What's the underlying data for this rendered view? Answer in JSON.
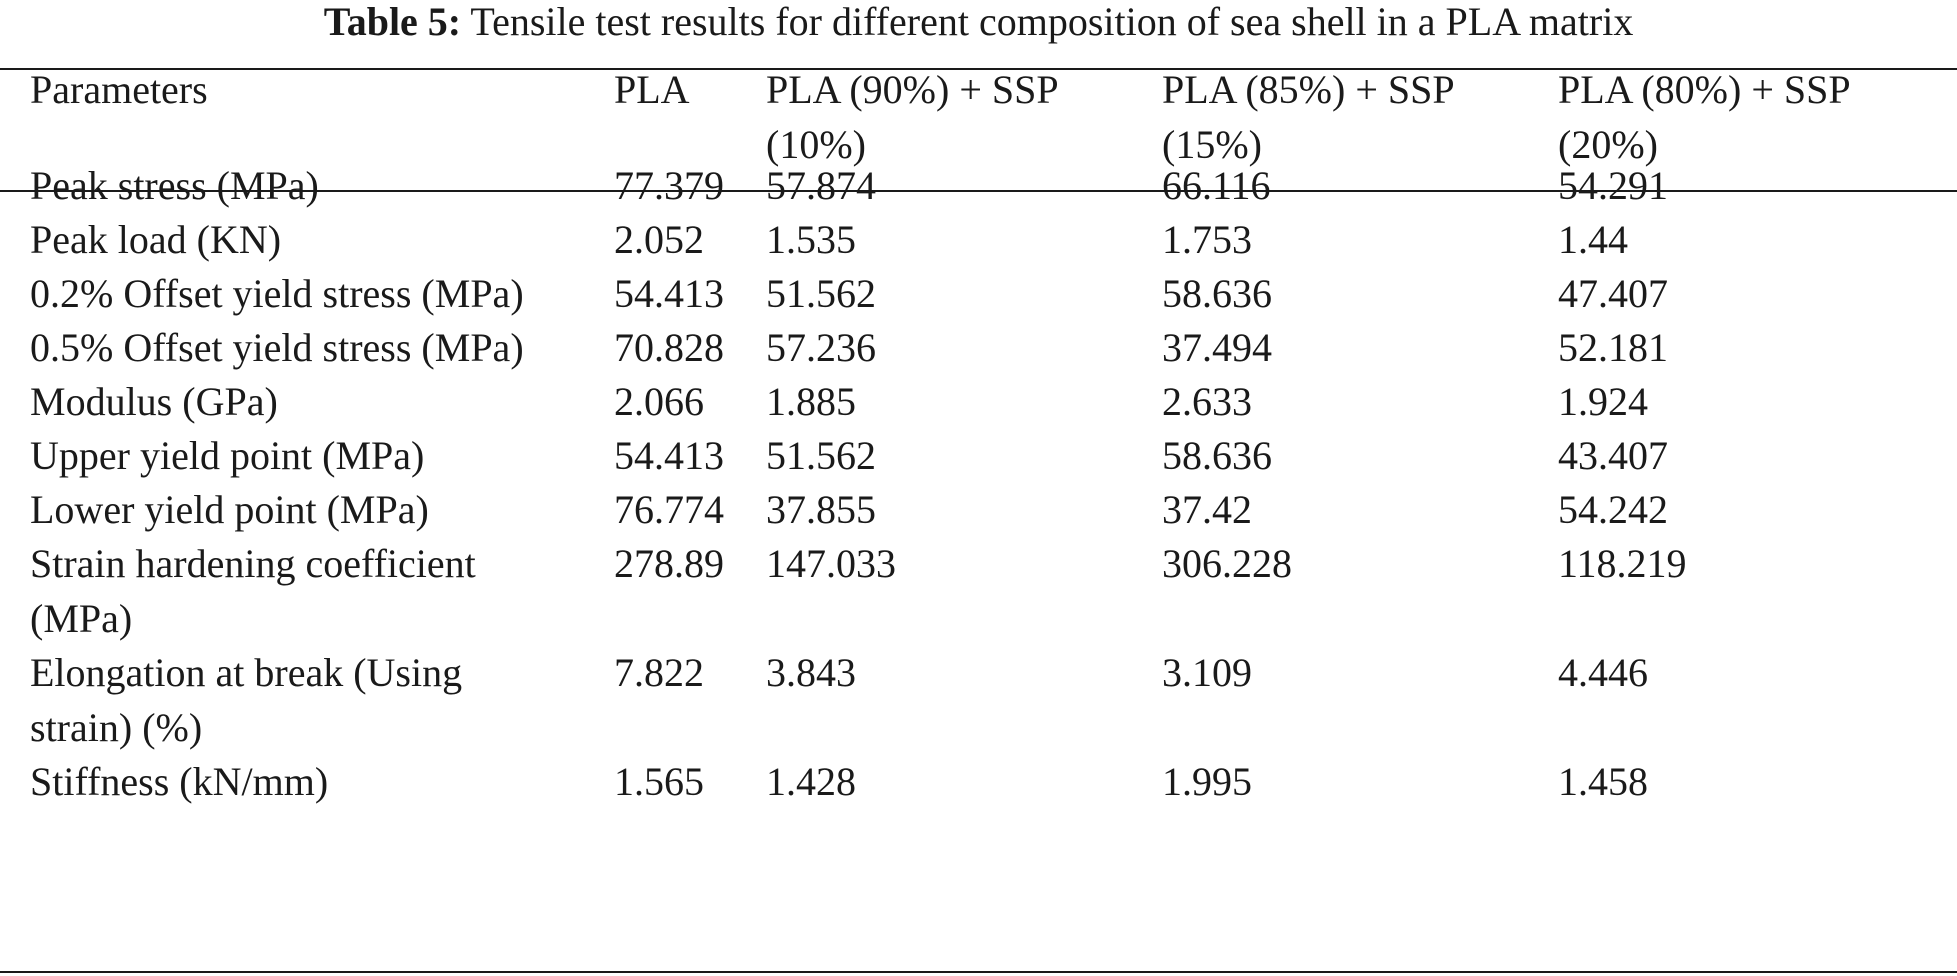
{
  "caption": {
    "label": "Table 5:",
    "text": "Tensile test results for different composition of sea shell in a PLA matrix"
  },
  "table": {
    "headers": [
      [
        "Parameters"
      ],
      [
        "PLA"
      ],
      [
        "PLA (90%) + SSP",
        "(10%)"
      ],
      [
        "PLA (85%) + SSP",
        "(15%)"
      ],
      [
        "PLA (80%) + SSP",
        "(20%)"
      ]
    ],
    "rows": [
      {
        "parameter": [
          "Peak stress (MPa)"
        ],
        "values": [
          "77.379",
          "57.874",
          "66.116",
          "54.291"
        ]
      },
      {
        "parameter": [
          "Peak load (KN)"
        ],
        "values": [
          "2.052",
          "1.535",
          "1.753",
          "1.44"
        ]
      },
      {
        "parameter": [
          "0.2% Offset yield stress (MPa)"
        ],
        "values": [
          "54.413",
          "51.562",
          "58.636",
          "47.407"
        ]
      },
      {
        "parameter": [
          "0.5% Offset yield stress (MPa)"
        ],
        "values": [
          "70.828",
          "57.236",
          "37.494",
          "52.181"
        ]
      },
      {
        "parameter": [
          "Modulus (GPa)"
        ],
        "values": [
          "2.066",
          "1.885",
          "2.633",
          "1.924"
        ]
      },
      {
        "parameter": [
          "Upper yield point (MPa)"
        ],
        "values": [
          "54.413",
          "51.562",
          "58.636",
          "43.407"
        ]
      },
      {
        "parameter": [
          "Lower yield point (MPa)"
        ],
        "values": [
          "76.774",
          "37.855",
          "37.42",
          "54.242"
        ]
      },
      {
        "parameter": [
          "Strain hardening coefficient",
          "(MPa)"
        ],
        "values": [
          "278.89",
          "147.033",
          "306.228",
          "118.219"
        ]
      },
      {
        "parameter": [
          "Elongation at break (Using",
          "strain) (%)"
        ],
        "values": [
          "7.822",
          "3.843",
          "3.109",
          "4.446"
        ]
      },
      {
        "parameter": [
          "Stiffness (kN/mm)"
        ],
        "values": [
          "1.565",
          "1.428",
          "1.995",
          "1.458"
        ]
      }
    ]
  }
}
